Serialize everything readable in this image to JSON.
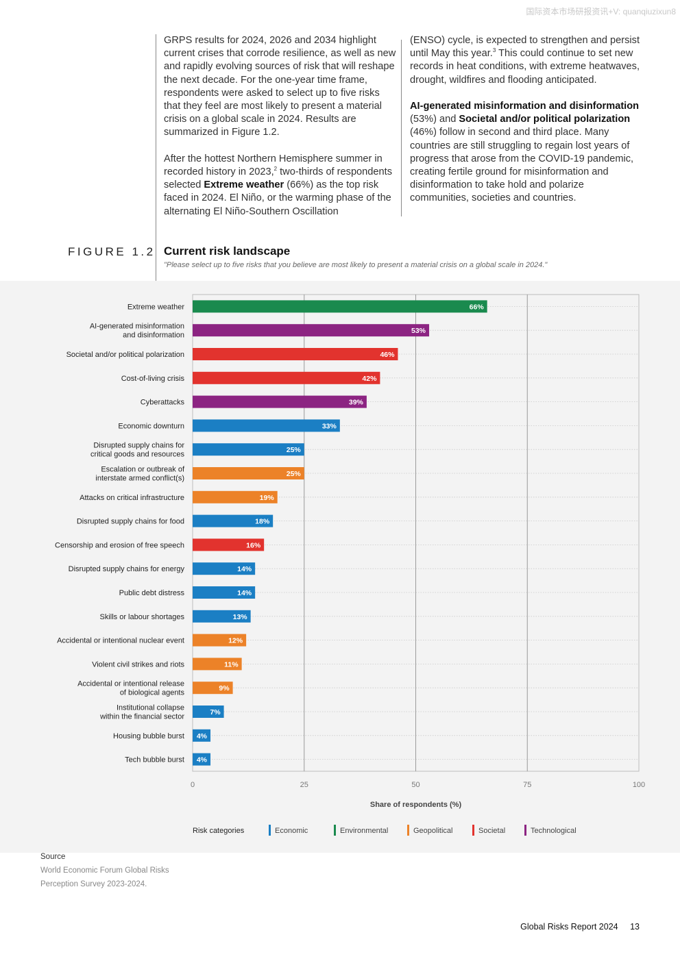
{
  "header": {
    "watermark": "国际资本市场研报资讯+V: quanqiuzixun8"
  },
  "body_text": {
    "left_p1": "GRPS results for 2024, 2026 and 2034 highlight current crises that corrode resilience, as well as new and rapidly evolving sources of risk that will reshape the next decade. For the one-year time frame, respondents were asked to select up to five risks that they feel are most likely to present a material crisis on a global scale in 2024. Results are summarized in Figure 1.2.",
    "left_p2_a": "After the hottest Northern Hemisphere summer in recorded history in 2023,",
    "left_p2_sup": "2",
    "left_p2_b": " two-thirds of respondents selected ",
    "left_p2_bold": "Extreme weather",
    "left_p2_c": " (66%) as the top risk faced in 2024. El Niño, or the warming phase of the alternating El Niño-Southern Oscillation",
    "right_p1_a": "(ENSO) cycle, is expected to strengthen and persist until May this year.",
    "right_p1_sup": "3",
    "right_p1_b": " This could continue to set new records in heat conditions, with extreme heatwaves, drought, wildfires and flooding anticipated.",
    "right_p2_bold1": "AI-generated misinformation and disinformation",
    "right_p2_a": " (53%) and ",
    "right_p2_bold2": "Societal and/or political polarization",
    "right_p2_b": " (46%) follow in second and third place. Many countries are still struggling to regain lost years of progress that arose from the COVID-19 pandemic, creating fertile ground for misinformation and disinformation to take hold and polarize communities, societies and countries."
  },
  "figure": {
    "label": "FIGURE 1.2",
    "title": "Current risk landscape",
    "subtitle": "\"Please select up to five risks that you believe are most likely to present a material crisis on a global scale in 2024.\""
  },
  "chart_data": {
    "type": "bar",
    "orientation": "horizontal",
    "title": "Current risk landscape",
    "xlabel": "Share of respondents (%)",
    "xlim": [
      0,
      100
    ],
    "xticks": [
      0,
      25,
      50,
      75,
      100
    ],
    "grid": true,
    "legend_title": "Risk categories",
    "legend_position": "bottom",
    "categories_legend": [
      {
        "name": "Economic",
        "color": "#1b7fc4"
      },
      {
        "name": "Environmental",
        "color": "#1a8a4e"
      },
      {
        "name": "Geopolitical",
        "color": "#ec8228"
      },
      {
        "name": "Societal",
        "color": "#e2332e"
      },
      {
        "name": "Technological",
        "color": "#8c2482"
      }
    ],
    "bars": [
      {
        "label": [
          "Extreme weather"
        ],
        "value": 66,
        "value_label": "66%",
        "category": "Environmental"
      },
      {
        "label": [
          "AI-generated misinformation",
          "and disinformation"
        ],
        "value": 53,
        "value_label": "53%",
        "category": "Technological"
      },
      {
        "label": [
          "Societal and/or political polarization"
        ],
        "value": 46,
        "value_label": "46%",
        "category": "Societal"
      },
      {
        "label": [
          "Cost-of-living crisis"
        ],
        "value": 42,
        "value_label": "42%",
        "category": "Societal"
      },
      {
        "label": [
          "Cyberattacks"
        ],
        "value": 39,
        "value_label": "39%",
        "category": "Technological"
      },
      {
        "label": [
          "Economic downturn"
        ],
        "value": 33,
        "value_label": "33%",
        "category": "Economic"
      },
      {
        "label": [
          "Disrupted supply chains for",
          "critical goods and resources"
        ],
        "value": 25,
        "value_label": "25%",
        "category": "Economic"
      },
      {
        "label": [
          "Escalation or outbreak of",
          "interstate armed conflict(s)"
        ],
        "value": 25,
        "value_label": "25%",
        "category": "Geopolitical"
      },
      {
        "label": [
          "Attacks on critical infrastructure"
        ],
        "value": 19,
        "value_label": "19%",
        "category": "Geopolitical"
      },
      {
        "label": [
          "Disrupted supply chains for food"
        ],
        "value": 18,
        "value_label": "18%",
        "category": "Economic"
      },
      {
        "label": [
          "Censorship and erosion of free speech"
        ],
        "value": 16,
        "value_label": "16%",
        "category": "Societal"
      },
      {
        "label": [
          "Disrupted supply chains for energy"
        ],
        "value": 14,
        "value_label": "14%",
        "category": "Economic"
      },
      {
        "label": [
          "Public debt distress"
        ],
        "value": 14,
        "value_label": "14%",
        "category": "Economic"
      },
      {
        "label": [
          "Skills or labour shortages"
        ],
        "value": 13,
        "value_label": "13%",
        "category": "Economic"
      },
      {
        "label": [
          "Accidental or intentional nuclear event"
        ],
        "value": 12,
        "value_label": "12%",
        "category": "Geopolitical"
      },
      {
        "label": [
          "Violent civil strikes and riots"
        ],
        "value": 11,
        "value_label": "11%",
        "category": "Geopolitical"
      },
      {
        "label": [
          "Accidental or intentional release",
          "of biological agents"
        ],
        "value": 9,
        "value_label": "9%",
        "category": "Geopolitical"
      },
      {
        "label": [
          "Institutional collapse",
          "within the financial sector"
        ],
        "value": 7,
        "value_label": "7%",
        "category": "Economic"
      },
      {
        "label": [
          "Housing bubble burst"
        ],
        "value": 4,
        "value_label": "4%",
        "category": "Economic"
      },
      {
        "label": [
          "Tech bubble burst"
        ],
        "value": 4,
        "value_label": "4%",
        "category": "Economic"
      }
    ]
  },
  "source": {
    "heading": "Source",
    "line1": "World Economic Forum Global Risks",
    "line2": "Perception Survey 2023-2024."
  },
  "footer": {
    "report": "Global Risks Report 2024",
    "page": "13"
  }
}
